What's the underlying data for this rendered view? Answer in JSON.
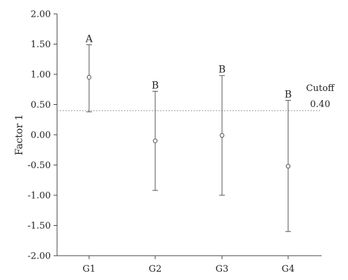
{
  "chart_data": {
    "type": "scatter",
    "ylabel": "Factor 1",
    "ylim": [
      -2.0,
      2.0
    ],
    "yticks": [
      "2.00",
      "1.50",
      "1.00",
      "0.50",
      "0.00",
      "-0.50",
      "-1.00",
      "-1.50",
      "-2.00"
    ],
    "ytick_values": [
      2.0,
      1.5,
      1.0,
      0.5,
      0.0,
      -0.5,
      -1.0,
      -1.5,
      -2.0
    ],
    "categories": [
      "G1",
      "G2",
      "G3",
      "G4"
    ],
    "mean": [
      0.95,
      -0.1,
      -0.01,
      -0.52
    ],
    "lower": [
      0.38,
      -0.92,
      -1.0,
      -1.6
    ],
    "upper": [
      1.49,
      0.72,
      0.98,
      0.57
    ],
    "group_letters": [
      "A",
      "B",
      "B",
      "B"
    ],
    "cutoff": {
      "value": 0.4,
      "label": "Cutoff",
      "value_label": "0.40"
    },
    "grid": false,
    "legend": "none",
    "colors": {
      "axis": "#444444",
      "error_bar": "#555555",
      "cutoff": "#999999"
    }
  }
}
